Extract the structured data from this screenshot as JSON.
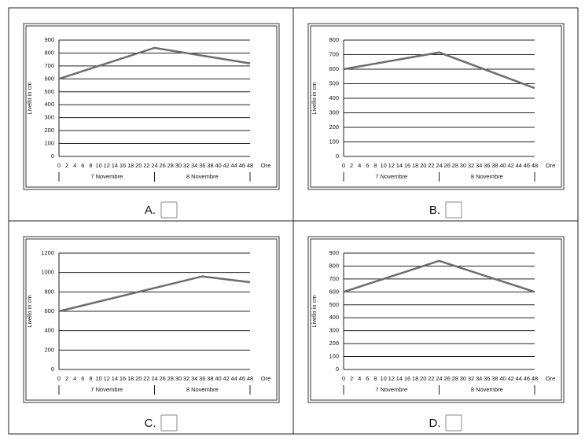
{
  "chart_data": [
    {
      "type": "line",
      "y_label": "Livello in cm",
      "x_label": "Ore",
      "groups": [
        "7 Novembre",
        "8 Novembre"
      ],
      "xlim": [
        0,
        48
      ],
      "xticks": [
        0,
        2,
        4,
        6,
        8,
        10,
        12,
        14,
        16,
        18,
        20,
        22,
        24,
        26,
        28,
        30,
        32,
        34,
        36,
        38,
        40,
        42,
        44,
        46,
        48
      ],
      "ylim": [
        0,
        900
      ],
      "yticks": [
        0,
        100,
        200,
        300,
        400,
        500,
        600,
        700,
        800,
        900
      ],
      "grid": true,
      "series": [
        {
          "color": "#6d6d6d",
          "x": [
            0,
            24,
            48
          ],
          "values": [
            600,
            840,
            720
          ]
        }
      ]
    },
    {
      "type": "line",
      "y_label": "Livello in cm",
      "x_label": "Ore",
      "groups": [
        "7 Novembre",
        "8 Novembre"
      ],
      "xlim": [
        0,
        48
      ],
      "xticks": [
        0,
        2,
        4,
        6,
        8,
        10,
        12,
        14,
        16,
        18,
        20,
        22,
        24,
        26,
        28,
        30,
        32,
        34,
        36,
        38,
        40,
        42,
        44,
        46,
        48
      ],
      "ylim": [
        0,
        800
      ],
      "yticks": [
        0,
        100,
        200,
        300,
        400,
        500,
        600,
        700,
        800
      ],
      "grid": true,
      "series": [
        {
          "color": "#6d6d6d",
          "x": [
            0,
            24,
            48
          ],
          "values": [
            600,
            715,
            470
          ]
        }
      ]
    },
    {
      "type": "line",
      "y_label": "Livello in cm",
      "x_label": "Ore",
      "groups": [
        "7 Novembre",
        "8 Novembre"
      ],
      "xlim": [
        0,
        48
      ],
      "xticks": [
        0,
        2,
        4,
        6,
        8,
        10,
        12,
        14,
        16,
        18,
        20,
        22,
        24,
        26,
        28,
        30,
        32,
        34,
        36,
        38,
        40,
        42,
        44,
        46,
        48
      ],
      "ylim": [
        0,
        1200
      ],
      "yticks": [
        0,
        200,
        400,
        600,
        800,
        1000,
        1200
      ],
      "grid": true,
      "series": [
        {
          "color": "#6d6d6d",
          "x": [
            0,
            36,
            48
          ],
          "values": [
            600,
            960,
            900
          ]
        }
      ]
    },
    {
      "type": "line",
      "y_label": "Livello in cm",
      "x_label": "Ore",
      "groups": [
        "7 Novembre",
        "8 Novembre"
      ],
      "xlim": [
        0,
        48
      ],
      "xticks": [
        0,
        2,
        4,
        6,
        8,
        10,
        12,
        14,
        16,
        18,
        20,
        22,
        24,
        26,
        28,
        30,
        32,
        34,
        36,
        38,
        40,
        42,
        44,
        46,
        48
      ],
      "ylim": [
        0,
        900
      ],
      "yticks": [
        0,
        100,
        200,
        300,
        400,
        500,
        600,
        700,
        800,
        900
      ],
      "grid": true,
      "series": [
        {
          "color": "#6d6d6d",
          "x": [
            0,
            24,
            48
          ],
          "values": [
            600,
            840,
            600
          ]
        }
      ]
    }
  ],
  "options": [
    "A.",
    "B.",
    "C.",
    "D."
  ]
}
